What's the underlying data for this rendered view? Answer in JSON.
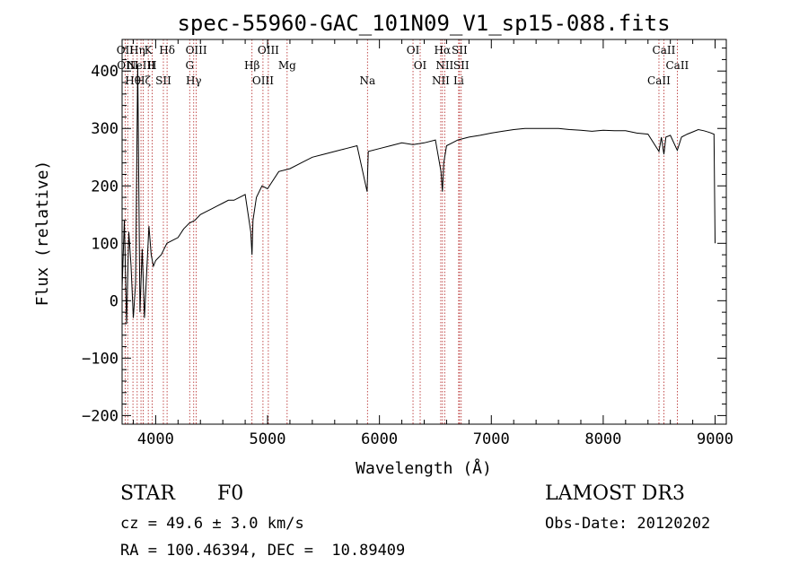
{
  "chart_data": {
    "type": "line",
    "title": "spec-55960-GAC_101N09_V1_sp15-088.fits",
    "xlabel": "Wavelength (Å)",
    "ylabel": "Flux (relative)",
    "xlim": [
      3700,
      9100
    ],
    "ylim": [
      -215,
      455
    ],
    "x_ticks": [
      4000,
      5000,
      6000,
      7000,
      8000,
      9000
    ],
    "y_ticks": [
      -200,
      -100,
      0,
      100,
      200,
      300,
      400
    ],
    "series": [
      {
        "name": "spectrum",
        "x": [
          3700,
          3720,
          3740,
          3760,
          3780,
          3800,
          3820,
          3840,
          3860,
          3880,
          3900,
          3920,
          3940,
          3960,
          3980,
          4000,
          4050,
          4100,
          4150,
          4200,
          4250,
          4300,
          4350,
          4400,
          4450,
          4500,
          4550,
          4600,
          4650,
          4700,
          4750,
          4800,
          4850,
          4861,
          4870,
          4900,
          4950,
          5000,
          5100,
          5200,
          5300,
          5400,
          5500,
          5600,
          5700,
          5800,
          5890,
          5900,
          6000,
          6100,
          6200,
          6300,
          6400,
          6500,
          6550,
          6563,
          6575,
          6600,
          6650,
          6700,
          6800,
          6900,
          7000,
          7100,
          7200,
          7300,
          7400,
          7500,
          7600,
          7700,
          7800,
          7900,
          8000,
          8100,
          8200,
          8300,
          8400,
          8498,
          8520,
          8542,
          8560,
          8600,
          8662,
          8700,
          8750,
          8800,
          8850,
          8900,
          8950,
          8990,
          9000
        ],
        "y": [
          20,
          140,
          -40,
          120,
          60,
          -30,
          30,
          410,
          -20,
          90,
          -30,
          50,
          130,
          80,
          60,
          70,
          80,
          100,
          105,
          110,
          125,
          135,
          140,
          150,
          155,
          160,
          165,
          170,
          175,
          175,
          180,
          185,
          120,
          80,
          140,
          180,
          200,
          195,
          225,
          230,
          240,
          250,
          255,
          260,
          265,
          270,
          190,
          260,
          265,
          270,
          275,
          272,
          275,
          280,
          225,
          190,
          240,
          270,
          275,
          280,
          285,
          288,
          292,
          295,
          298,
          300,
          300,
          300,
          300,
          298,
          297,
          295,
          297,
          296,
          296,
          292,
          290,
          260,
          285,
          255,
          285,
          288,
          262,
          285,
          290,
          294,
          298,
          296,
          293,
          290,
          100
        ]
      }
    ],
    "spectral_lines": [
      {
        "wavelength": 3727,
        "label": "OII"
      },
      {
        "wavelength": 3750,
        "label": "OIII"
      },
      {
        "wavelength": 3797,
        "label": "Hθ"
      },
      {
        "wavelength": 3835,
        "label": "Hη"
      },
      {
        "wavelength": 3869,
        "label": "NeIII"
      },
      {
        "wavelength": 3889,
        "label": "Hζ"
      },
      {
        "wavelength": 3934,
        "label": "K"
      },
      {
        "wavelength": 3968,
        "label": "H"
      },
      {
        "wavelength": 4069,
        "label": "SII"
      },
      {
        "wavelength": 4102,
        "label": "Hδ"
      },
      {
        "wavelength": 4304,
        "label": "G"
      },
      {
        "wavelength": 4340,
        "label": "Hγ"
      },
      {
        "wavelength": 4363,
        "label": "OIII"
      },
      {
        "wavelength": 4861,
        "label": "Hβ"
      },
      {
        "wavelength": 4959,
        "label": "OIII"
      },
      {
        "wavelength": 5007,
        "label": "OIII"
      },
      {
        "wavelength": 5175,
        "label": "Mg"
      },
      {
        "wavelength": 5893,
        "label": "Na"
      },
      {
        "wavelength": 6300,
        "label": "OI"
      },
      {
        "wavelength": 6364,
        "label": "OI"
      },
      {
        "wavelength": 6548,
        "label": "NII"
      },
      {
        "wavelength": 6563,
        "label": "Hα"
      },
      {
        "wavelength": 6583,
        "label": "NII"
      },
      {
        "wavelength": 6708,
        "label": "Li"
      },
      {
        "wavelength": 6716,
        "label": "SII"
      },
      {
        "wavelength": 6731,
        "label": "SII"
      },
      {
        "wavelength": 8498,
        "label": "CaII"
      },
      {
        "wavelength": 8542,
        "label": "CaII"
      },
      {
        "wavelength": 8662,
        "label": "CaII"
      }
    ]
  },
  "info": {
    "class": "STAR",
    "subclass": "F0",
    "survey": "LAMOST DR3",
    "cz": "cz = 49.6 ± 3.0 km/s",
    "obs_date": "Obs-Date: 20120202",
    "coords": "RA = 100.46394, DEC =  10.89409"
  }
}
